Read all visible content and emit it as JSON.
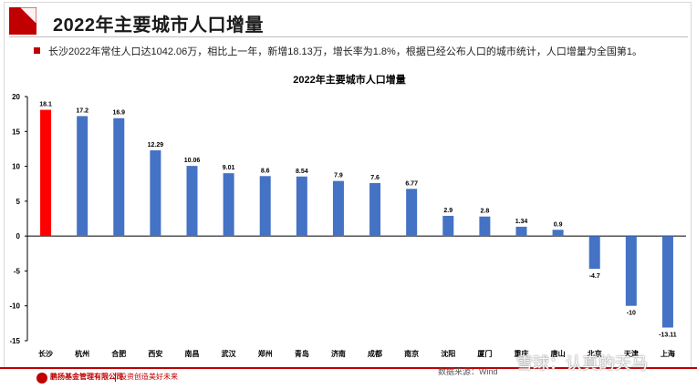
{
  "header": {
    "title": "2022年主要城市人口增量"
  },
  "bullet": {
    "text": "长沙2022年常住人口达1042.06万，相比上一年，新增18.13万，增长率为1.8%，根据已经公布人口的城市统计，人口增量为全国第1。"
  },
  "chart_data": {
    "type": "bar",
    "title": "2022年主要城市人口增量",
    "categories": [
      "长沙",
      "杭州",
      "合肥",
      "西安",
      "南昌",
      "武汉",
      "郑州",
      "青岛",
      "济南",
      "成都",
      "南京",
      "沈阳",
      "厦门",
      "重庆",
      "唐山",
      "北京",
      "天津",
      "上海"
    ],
    "series": [
      {
        "values": [
          18.1,
          17.2,
          16.9,
          12.29,
          10.06,
          9.01,
          8.6,
          8.54,
          7.9,
          7.6,
          6.77,
          2.9,
          2.8,
          1.34,
          0.9,
          -4.7,
          -10,
          -13.11
        ]
      }
    ],
    "data_labels": [
      "18.1",
      "17.2",
      "16.9",
      "12.29",
      "10.06",
      "9.01",
      "8.6",
      "8.54",
      "7.9",
      "7.6",
      "6.77",
      "2.9",
      "2.8",
      "1.34",
      "0.9",
      "-4.7",
      "-10",
      "-13.11"
    ],
    "highlight_index": 0,
    "colors": {
      "bar": "#4472c4",
      "highlight": "#ff0000",
      "axis": "#000000",
      "accent": "#c00000"
    },
    "ylim": [
      -15,
      20
    ],
    "yticks": [
      -15,
      -10,
      -5,
      0,
      5,
      10,
      15,
      20
    ],
    "ytick_labels": [
      "-15",
      "-10",
      "-5",
      "0",
      "5",
      "10",
      "15",
      "20"
    ],
    "grid": false,
    "legend": "none"
  },
  "footer": {
    "company": "鹏扬基金管理有限公司",
    "slogan": "投资创造美好未来",
    "source": "数据来源：Wind",
    "watermark": "雪球：认真的天马"
  }
}
